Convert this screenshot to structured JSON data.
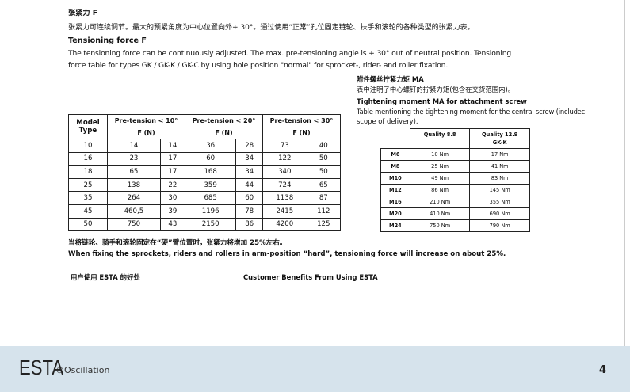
{
  "section": {
    "title_cn": "张紧力 F",
    "text_cn": "张紧力可连续调节。最大的预紧角度为中心位置向外+ 30°。通过使用“正常”孔位固定链轮、扶手和滚轮的各种类型的张紧力表。",
    "title_en": "Tensioning force F",
    "text_en_1": "The tensioning force can be continuously adjusted. The max. pre-tensioning angle is + 30° out of neutral position. Tensioning",
    "text_en_2": "force table for types GK / GK-K / GK-C by using hole position \"normal\" for sprocket-, rider- and roller fixation."
  },
  "force_table": {
    "model_header": "Model Type",
    "groups": [
      "Pre-tension < 10°",
      "Pre-tension < 20°",
      "Pre-tension < 30°"
    ],
    "unit": "F (N)",
    "rows": [
      [
        "10",
        "14",
        "14",
        "36",
        "28",
        "73",
        "40"
      ],
      [
        "16",
        "23",
        "17",
        "60",
        "34",
        "122",
        "50"
      ],
      [
        "18",
        "65",
        "17",
        "168",
        "34",
        "340",
        "50"
      ],
      [
        "25",
        "138",
        "22",
        "359",
        "44",
        "724",
        "65"
      ],
      [
        "35",
        "264",
        "30",
        "685",
        "60",
        "1138",
        "87"
      ],
      [
        "45",
        "460,5",
        "39",
        "1196",
        "78",
        "2415",
        "112"
      ],
      [
        "50",
        "750",
        "43",
        "2150",
        "86",
        "4200",
        "125"
      ]
    ]
  },
  "moment": {
    "title_cn": "附件螺丝拧紧力矩 MA",
    "text_cn": "表中注明了中心螺钉的拧紧力矩(包含在交货范围内)。",
    "title_en": "Tightening moment MA for attachment screw",
    "text_en_1": "Table mentioning the tightening moment for the central screw (includec",
    "text_en_2": "scope of delivery).",
    "headers": [
      "Quality 8.8",
      "Quality 12.9",
      "GK-K"
    ],
    "rows": [
      [
        "M6",
        "10 Nm",
        "17 Nm"
      ],
      [
        "M8",
        "25 Nm",
        "41 Nm"
      ],
      [
        "M10",
        "49 Nm",
        "83 Nm"
      ],
      [
        "M12",
        "86 Nm",
        "145 Nm"
      ],
      [
        "M16",
        "210 Nm",
        "355 Nm"
      ],
      [
        "M20",
        "410 Nm",
        "690 Nm"
      ],
      [
        "M24",
        "750 Nm",
        "790 Nm"
      ]
    ]
  },
  "note": {
    "cn": "当将链轮、骑手和滚轮固定在“硬”臂位置时，张紧力将增加 25%左右。",
    "en": "When fixing the sprockets, riders and rollers in arm-position “hard”, tensioning force will increase on about 25%."
  },
  "benefits": {
    "cn": "用户使用 ESTA 的好处",
    "en": "Customer Benefits From Using ESTA"
  },
  "footer": {
    "brand": "ESTA",
    "sub": "®Oscillation",
    "page": "4",
    "bg": "#d6e3ec"
  }
}
